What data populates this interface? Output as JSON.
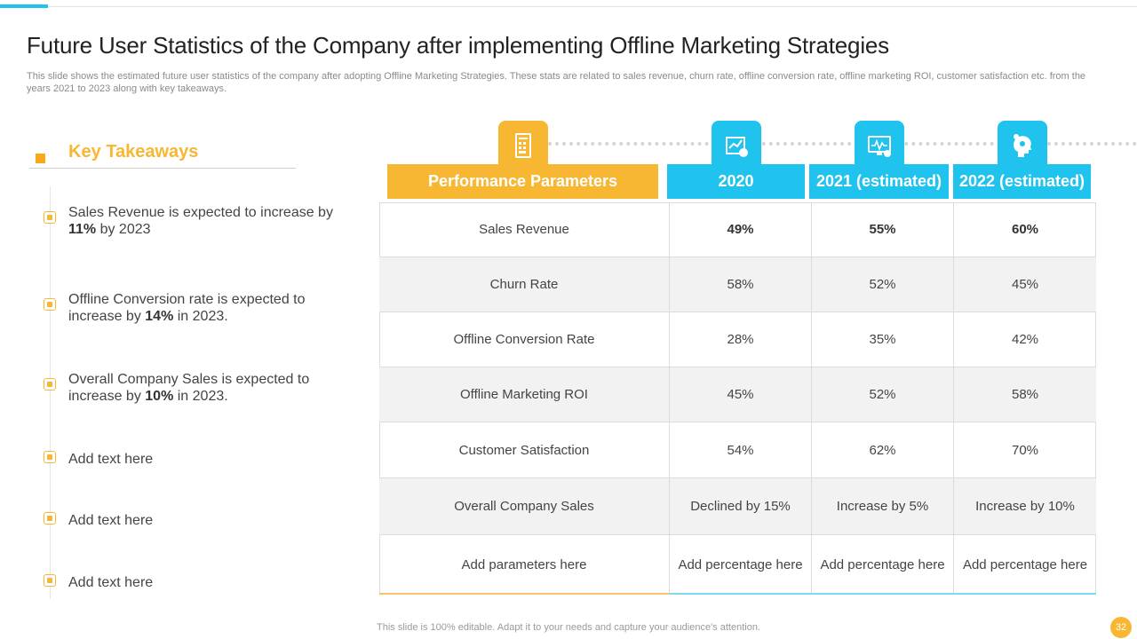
{
  "title": "Future User Statistics of the Company after implementing Offline Marketing Strategies",
  "subtitle": "This slide shows the estimated future user statistics of the company after adopting Offline Marketing Strategies. These stats are related to sales revenue, churn rate, offline conversion rate, offline marketing ROI, customer satisfaction etc. from the years 2021 to 2023 along with key takeaways.",
  "key_takeaways": {
    "title": "Key Takeaways",
    "items": [
      {
        "pre": "Sales Revenue  is expected to increase by ",
        "bold": "11%",
        "post": " by 2023"
      },
      {
        "pre": "Offline Conversion rate is expected to increase by ",
        "bold": "14%",
        "post": " in 2023."
      },
      {
        "pre": "Overall Company Sales is expected to increase by ",
        "bold": "10%",
        "post": " in 2023."
      },
      {
        "pre": "Add text here",
        "bold": "",
        "post": ""
      },
      {
        "pre": "Add text here",
        "bold": "",
        "post": ""
      },
      {
        "pre": "Add text here",
        "bold": "",
        "post": ""
      }
    ]
  },
  "table": {
    "headers": [
      "Performance Parameters",
      "2020",
      "2021 (estimated)",
      "2022 (estimated)"
    ],
    "header_icons": [
      "bill-icon",
      "chart-report-icon",
      "analytics-monitor-icon",
      "head-gears-icon"
    ],
    "rows": [
      [
        "Sales Revenue",
        "49%",
        "55%",
        "60%"
      ],
      [
        "Churn Rate",
        "58%",
        "52%",
        "45%"
      ],
      [
        "Offline Conversion Rate",
        "28%",
        "35%",
        "42%"
      ],
      [
        "Offline Marketing  ROI",
        "45%",
        "52%",
        "58%"
      ],
      [
        "Customer Satisfaction",
        "54%",
        "62%",
        "70%"
      ],
      [
        "Overall Company Sales",
        "Declined by 15%",
        "Increase by 5%",
        "Increase by 10%"
      ],
      [
        "Add parameters here",
        "Add percentage here",
        "Add percentage here",
        "Add percentage here"
      ]
    ]
  },
  "footer": "This slide is 100% editable. Adapt it to your needs and capture your audience's attention.",
  "page_number": "32",
  "colors": {
    "accent_orange": "#f7b733",
    "accent_blue": "#1fc3ee"
  }
}
